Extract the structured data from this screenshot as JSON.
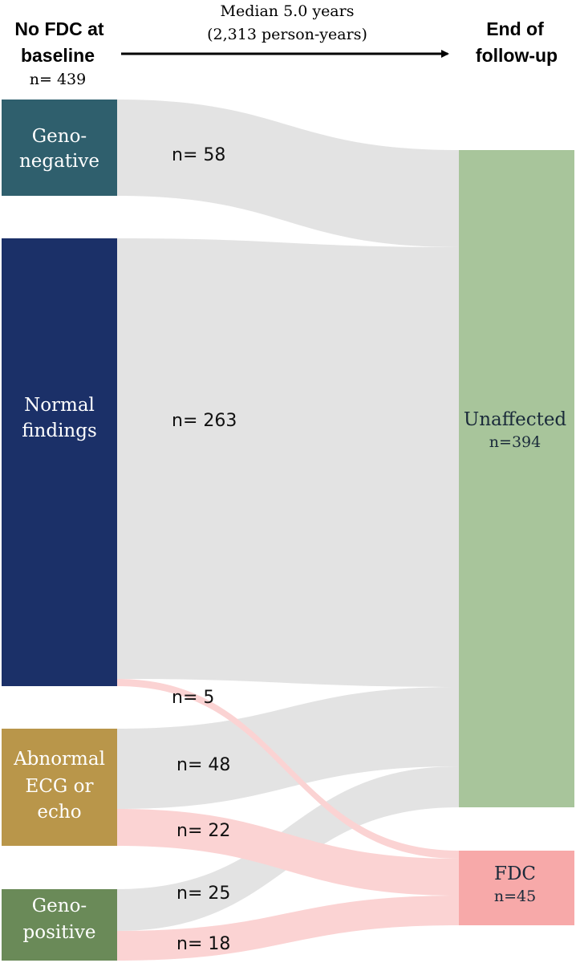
{
  "header": {
    "left_title_line1": "No FDC at",
    "left_title_line2": "baseline",
    "left_count": "n= 439",
    "middle_line1": "Median 5.0 years",
    "middle_line2": "(2,313 person-years)",
    "right_title_line1": "End of",
    "right_title_line2": "follow-up"
  },
  "nodes": {
    "geno_negative": {
      "line1": "Geno-",
      "line2": "negative",
      "color": "#2f5f6d"
    },
    "normal_findings": {
      "line1": "Normal",
      "line2": "findings",
      "color": "#1b3068"
    },
    "abnormal": {
      "line1": "Abnormal",
      "line2": "ECG or",
      "line3": "echo",
      "color": "#b9964a"
    },
    "geno_positive": {
      "line1": "Geno-",
      "line2": "positive",
      "color": "#6a8a58"
    },
    "unaffected": {
      "line1": "Unaffected",
      "line2": "n=394",
      "color": "#a8c59b"
    },
    "fdc": {
      "line1": "FDC",
      "line2": "n=45",
      "color": "#f7a9a9"
    }
  },
  "flows": [
    {
      "id": "geno_neg_unaffected",
      "label": "n= 58",
      "value": 58,
      "color": "#e3e3e3"
    },
    {
      "id": "normal_unaffected",
      "label": "n= 263",
      "value": 263,
      "color": "#e3e3e3"
    },
    {
      "id": "normal_fdc",
      "label": "n= 5",
      "value": 5,
      "color": "#fbd3d3"
    },
    {
      "id": "abnormal_unaffected",
      "label": "n= 48",
      "value": 48,
      "color": "#e3e3e3"
    },
    {
      "id": "abnormal_fdc",
      "label": "n= 22",
      "value": 22,
      "color": "#fbd3d3"
    },
    {
      "id": "geno_pos_unaffected",
      "label": "n= 25",
      "value": 25,
      "color": "#e3e3e3"
    },
    {
      "id": "geno_pos_fdc",
      "label": "n= 18",
      "value": 18,
      "color": "#fbd3d3"
    }
  ]
}
